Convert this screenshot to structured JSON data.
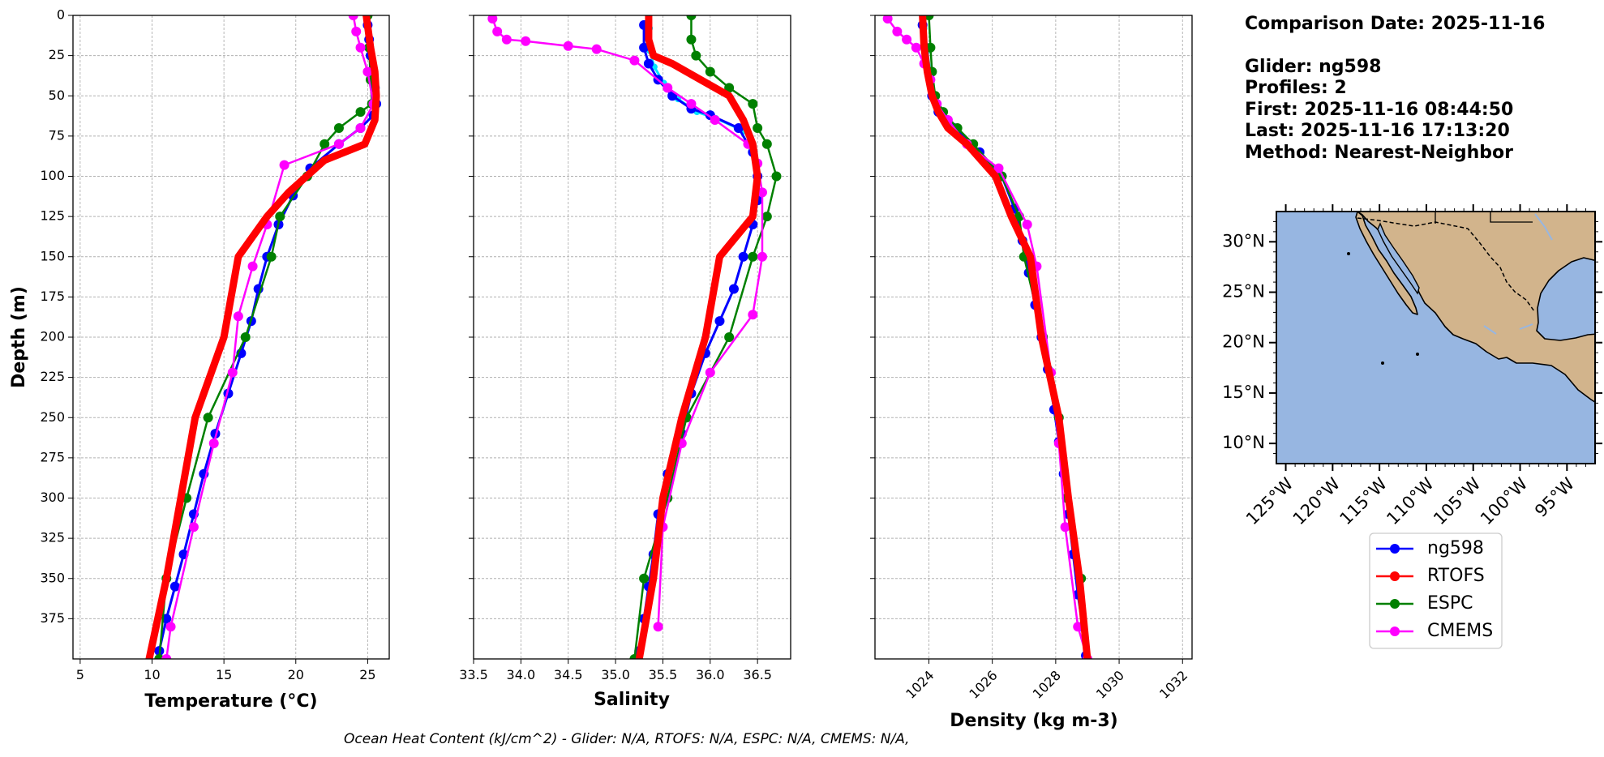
{
  "info": {
    "line1": "Comparison Date: 2025-11-16",
    "line2": "Glider: ng598",
    "line3": "Profiles: 2",
    "line4": "First: 2025-11-16 08:44:50",
    "line5": "Last: 2025-11-16 17:13:20",
    "line6": "Method: Nearest-Neighbor"
  },
  "footer": "Ocean Heat Content (kJ/cm^2) - Glider: N/A,  RTOFS: N/A,  ESPC: N/A,  CMEMS: N/A,",
  "colors": {
    "ng598": "#0000ff",
    "ng598_raw": "#00e5ff",
    "RTOFS": "#ff0000",
    "ESPC": "#008000",
    "CMEMS": "#ff00ff",
    "ocean": "#97b6e1",
    "land": "#d2b48c"
  },
  "legend": [
    "ng598",
    "RTOFS",
    "ESPC",
    "CMEMS"
  ],
  "map": {
    "lat_labels": [
      "30°N",
      "25°N",
      "20°N",
      "15°N",
      "10°N"
    ],
    "lat_values": [
      30,
      25,
      20,
      15,
      10
    ],
    "lon_labels": [
      "125°W",
      "120°W",
      "115°W",
      "110°W",
      "105°W",
      "100°W",
      "95°W"
    ],
    "lon_values": [
      -125,
      -120,
      -115,
      -110,
      -105,
      -100,
      -95
    ],
    "lon_range": [
      -126,
      -92
    ],
    "lat_range": [
      8,
      33
    ]
  },
  "chart_data": [
    {
      "type": "line",
      "xlabel": "Temperature (°C)",
      "ylabel": "Depth (m)",
      "xlim": [
        4.5,
        26.5
      ],
      "ylim": [
        400,
        0
      ],
      "xticks": [
        5,
        10,
        15,
        20,
        25
      ],
      "yticks": [
        0,
        25,
        50,
        75,
        100,
        125,
        150,
        175,
        200,
        225,
        250,
        275,
        300,
        325,
        350,
        375
      ],
      "grid": true,
      "series": [
        {
          "name": "ng598",
          "x": [
            25.0,
            25.1,
            25.2,
            25.3,
            25.5,
            25.6,
            25.4,
            24.5,
            23.0,
            21.0,
            19.8,
            18.8,
            18.0,
            17.4,
            16.9,
            16.2,
            15.3,
            14.4,
            13.6,
            12.9,
            12.2,
            11.6,
            11.0,
            10.5
          ],
          "y": [
            6,
            15,
            25,
            35,
            45,
            55,
            62,
            70,
            80,
            95,
            112,
            130,
            150,
            170,
            190,
            210,
            235,
            260,
            285,
            310,
            335,
            355,
            375,
            395
          ]
        },
        {
          "name": "RTOFS",
          "x": [
            24.9,
            25.2,
            25.5,
            25.6,
            25.5,
            24.8,
            22.0,
            19.5,
            18.0,
            16.0,
            15.0,
            13.0,
            12.0,
            11.0,
            9.8
          ],
          "y": [
            0,
            20,
            35,
            50,
            65,
            80,
            90,
            110,
            125,
            150,
            200,
            250,
            300,
            350,
            400
          ]
        },
        {
          "name": "ESPC",
          "x": [
            25.0,
            25.1,
            25.2,
            25.3,
            24.5,
            23.0,
            22.0,
            20.8,
            18.9,
            18.3,
            16.5,
            13.9,
            12.4,
            11.0,
            10.5
          ],
          "y": [
            0,
            20,
            40,
            55,
            60,
            70,
            80,
            100,
            125,
            150,
            200,
            250,
            300,
            350,
            400
          ]
        },
        {
          "name": "CMEMS",
          "x": [
            24.0,
            24.2,
            24.5,
            25.0,
            25.4,
            24.5,
            23.0,
            19.2,
            18.0,
            17.0,
            16.0,
            15.6,
            14.3,
            12.9,
            11.3,
            11.0
          ],
          "y": [
            0,
            10,
            20,
            35,
            55,
            70,
            80,
            93,
            130,
            156,
            187,
            222,
            266,
            318,
            380,
            400
          ]
        }
      ]
    },
    {
      "type": "line",
      "xlabel": "Salinity",
      "ylabel": "",
      "xlim": [
        33.5,
        36.85
      ],
      "ylim": [
        400,
        0
      ],
      "xticks": [
        33.5,
        34.0,
        34.5,
        35.0,
        35.5,
        36.0,
        36.5
      ],
      "yticks": [
        0,
        25,
        50,
        75,
        100,
        125,
        150,
        175,
        200,
        225,
        250,
        275,
        300,
        325,
        350,
        375
      ],
      "grid": true,
      "series": [
        {
          "name": "ng598",
          "x": [
            35.3,
            35.3,
            35.35,
            35.45,
            35.6,
            35.8,
            36.0,
            36.3,
            36.45,
            36.5,
            36.5,
            36.45,
            36.35,
            36.25,
            36.1,
            35.95,
            35.8,
            35.7,
            35.55,
            35.45,
            35.4,
            35.35,
            35.3,
            35.25
          ],
          "y": [
            6,
            20,
            30,
            40,
            50,
            58,
            62,
            70,
            85,
            100,
            115,
            130,
            150,
            170,
            190,
            210,
            235,
            260,
            285,
            310,
            335,
            355,
            375,
            395
          ]
        },
        {
          "name": "RTOFS",
          "x": [
            35.35,
            35.35,
            35.4,
            35.6,
            35.9,
            36.2,
            36.35,
            36.45,
            36.5,
            36.45,
            36.1,
            35.95,
            35.7,
            35.5,
            35.4,
            35.25
          ],
          "y": [
            0,
            15,
            25,
            30,
            40,
            50,
            65,
            80,
            100,
            125,
            150,
            200,
            250,
            300,
            350,
            400
          ]
        },
        {
          "name": "ESPC",
          "x": [
            35.8,
            35.8,
            35.85,
            36.0,
            36.2,
            36.45,
            36.5,
            36.6,
            36.7,
            36.6,
            36.45,
            36.2,
            35.75,
            35.55,
            35.3,
            35.2
          ],
          "y": [
            0,
            15,
            25,
            35,
            45,
            55,
            70,
            80,
            100,
            125,
            150,
            200,
            250,
            300,
            350,
            400
          ]
        },
        {
          "name": "CMEMS",
          "x": [
            33.7,
            33.75,
            33.85,
            34.05,
            34.5,
            34.8,
            35.2,
            35.55,
            35.8,
            36.05,
            36.4,
            36.5,
            36.55,
            36.55,
            36.45,
            36.0,
            35.7,
            35.5,
            35.45
          ],
          "y": [
            2,
            10,
            15,
            16,
            19,
            21,
            28,
            45,
            55,
            65,
            80,
            92,
            110,
            150,
            186,
            222,
            266,
            318,
            380
          ]
        }
      ]
    },
    {
      "type": "line",
      "xlabel": "Density (kg m-3)",
      "ylabel": "",
      "xlim": [
        1022.3,
        1032.3
      ],
      "ylim": [
        400,
        0
      ],
      "xticks": [
        1024,
        1026,
        1028,
        1030,
        1032
      ],
      "yticks": [
        0,
        25,
        50,
        75,
        100,
        125,
        150,
        175,
        200,
        225,
        250,
        275,
        300,
        325,
        350,
        375
      ],
      "grid": true,
      "series": [
        {
          "name": "ng598",
          "x": [
            1023.8,
            1023.9,
            1024.0,
            1024.1,
            1024.3,
            1024.8,
            1025.6,
            1026.3,
            1026.7,
            1026.95,
            1027.15,
            1027.35,
            1027.55,
            1027.75,
            1027.95,
            1028.1,
            1028.25,
            1028.4,
            1028.55,
            1028.7,
            1028.85,
            1028.95
          ],
          "y": [
            6,
            20,
            35,
            50,
            60,
            70,
            85,
            100,
            120,
            140,
            160,
            180,
            200,
            220,
            245,
            265,
            285,
            310,
            335,
            360,
            380,
            398
          ]
        },
        {
          "name": "RTOFS",
          "x": [
            1023.8,
            1023.85,
            1023.95,
            1024.1,
            1024.3,
            1024.6,
            1025.2,
            1026.1,
            1026.6,
            1027.2,
            1027.55,
            1028.1,
            1028.4,
            1028.75,
            1029.0
          ],
          "y": [
            0,
            20,
            35,
            50,
            60,
            70,
            80,
            100,
            125,
            150,
            200,
            250,
            300,
            350,
            400
          ]
        },
        {
          "name": "ESPC",
          "x": [
            1024.0,
            1024.05,
            1024.1,
            1024.2,
            1024.45,
            1024.9,
            1025.4,
            1026.3,
            1026.85,
            1027.0,
            1027.6,
            1028.1,
            1028.35,
            1028.8,
            1029.0
          ],
          "y": [
            0,
            20,
            35,
            50,
            60,
            70,
            80,
            100,
            125,
            150,
            200,
            250,
            300,
            350,
            400
          ]
        },
        {
          "name": "CMEMS",
          "x": [
            1022.7,
            1023.0,
            1023.3,
            1023.6,
            1023.85,
            1024.05,
            1024.25,
            1024.6,
            1025.2,
            1026.2,
            1027.1,
            1027.4,
            1027.85,
            1028.1,
            1028.3,
            1028.7,
            1029.0
          ],
          "y": [
            2,
            10,
            15,
            20,
            30,
            40,
            55,
            65,
            80,
            95,
            130,
            156,
            222,
            266,
            318,
            380,
            400
          ]
        }
      ]
    }
  ]
}
